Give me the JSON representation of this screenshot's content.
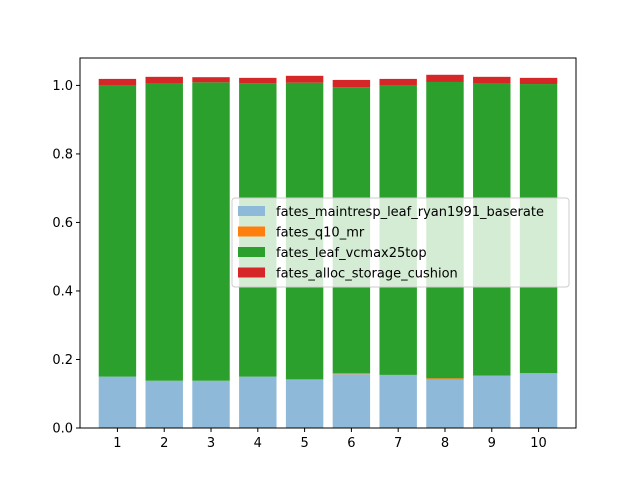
{
  "chart_data": {
    "type": "bar",
    "stacked": true,
    "categories": [
      "1",
      "2",
      "3",
      "4",
      "5",
      "6",
      "7",
      "8",
      "9",
      "10"
    ],
    "series": [
      {
        "name": "fates_maintresp_leaf_ryan1991_baserate",
        "color": "#8fb9d8",
        "values": [
          0.15,
          0.138,
          0.138,
          0.15,
          0.142,
          0.157,
          0.155,
          0.141,
          0.153,
          0.16
        ]
      },
      {
        "name": "fates_q10_mr",
        "color": "#ff7f0e",
        "values": [
          0.0,
          0.0,
          0.0,
          0.0,
          0.0,
          0.003,
          0.0,
          0.004,
          0.0,
          0.0
        ]
      },
      {
        "name": "fates_leaf_vcmax25top",
        "color": "#2ca02c",
        "values": [
          0.85,
          0.869,
          0.871,
          0.856,
          0.866,
          0.835,
          0.845,
          0.865,
          0.854,
          0.844
        ]
      },
      {
        "name": "fates_alloc_storage_cushion",
        "color": "#d62728",
        "values": [
          0.019,
          0.018,
          0.015,
          0.016,
          0.02,
          0.021,
          0.019,
          0.021,
          0.018,
          0.018
        ]
      }
    ],
    "ylim": [
      0,
      1.08
    ],
    "yticks": [
      "0.0",
      "0.2",
      "0.4",
      "0.6",
      "0.8",
      "1.0"
    ],
    "legend_position": "center-right",
    "grid": false
  }
}
